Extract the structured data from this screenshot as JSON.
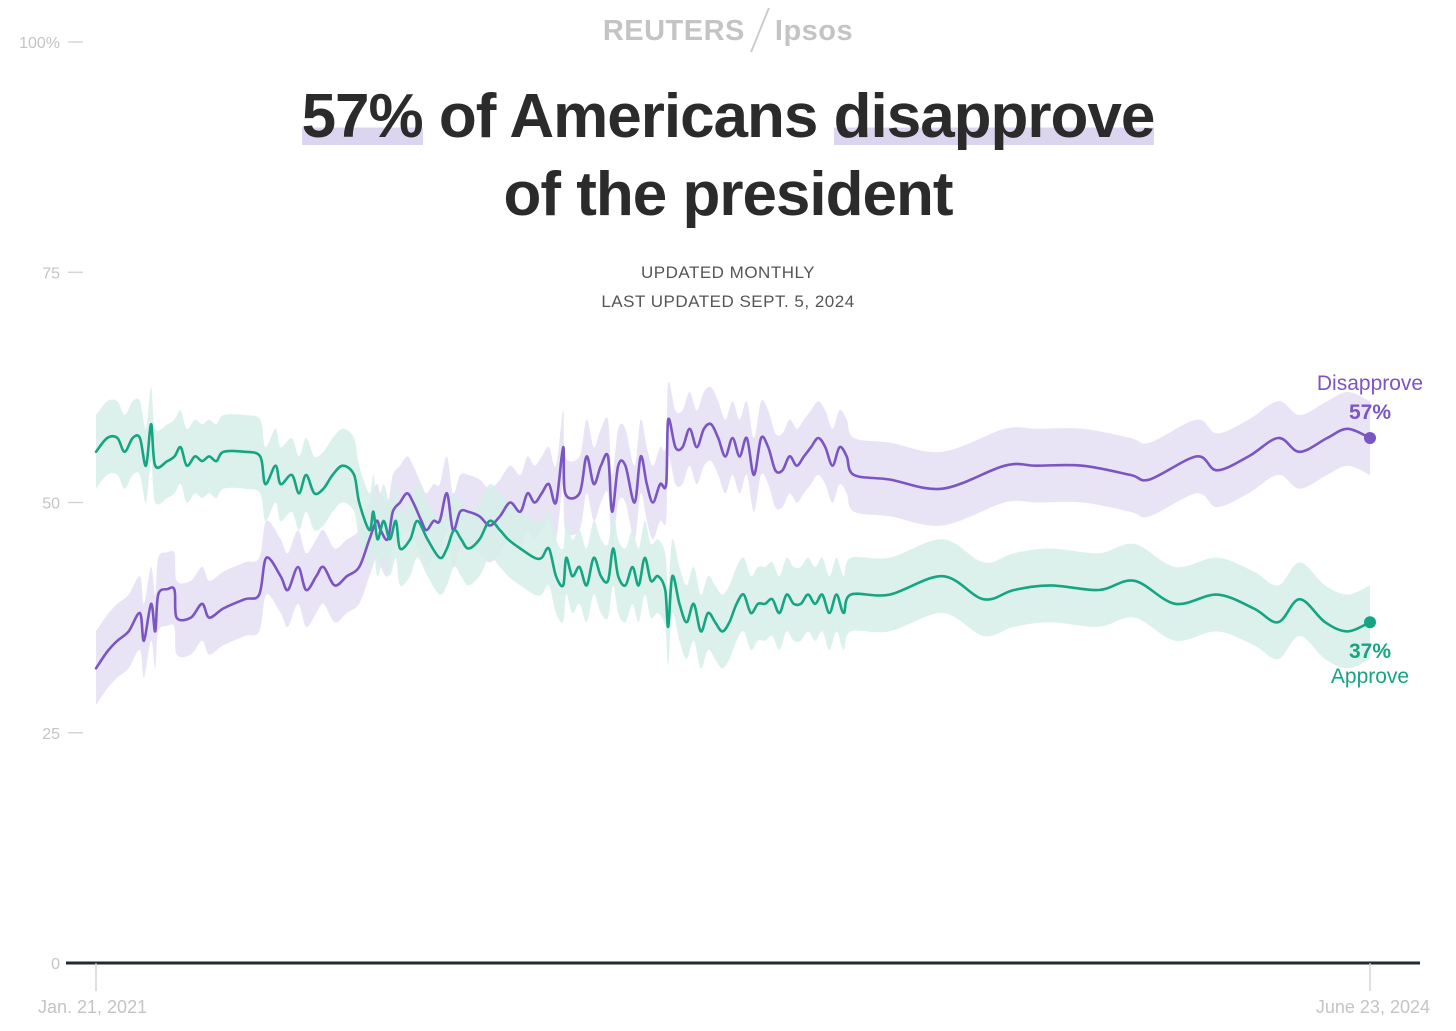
{
  "header": {
    "brand_left": "REUTERS",
    "brand_right": "Ipsos",
    "title_highlight_1": "57%",
    "title_middle": " of Americans ",
    "title_highlight_2": "disapprove",
    "title_line2": "of the president",
    "subtitle_line1": "UPDATED MONTHLY",
    "subtitle_line2": "LAST UPDATED SEPT. 5, 2024"
  },
  "chart_data": {
    "type": "line",
    "title": "57% of Americans disapprove of the president",
    "subtitle": "UPDATED MONTHLY / LAST UPDATED SEPT. 5, 2024",
    "ylim": [
      0,
      100
    ],
    "y_ticks": [
      0,
      25,
      50,
      75,
      100
    ],
    "y_tick_labels": [
      "0",
      "25",
      "50",
      "75",
      "100%"
    ],
    "x_range": [
      "2021-01-21",
      "2024-06-23"
    ],
    "x_tick_labels": [
      "Jan. 21, 2021",
      "June 23, 2024"
    ],
    "grid": false,
    "legend": "direct labels at line ends",
    "colors": {
      "Disapprove": "#7b55c2",
      "Approve": "#16a583",
      "Disapprove_band": "#e4dff5",
      "Approve_band": "#d6efe8",
      "axis": "#222a33",
      "tick": "#c4c4c4"
    },
    "series": [
      {
        "name": "Disapprove",
        "end_label": "57%",
        "data": [
          [
            "2021-01-21",
            32
          ],
          [
            "2021-02-01",
            33.8
          ],
          [
            "2021-02-11",
            35
          ],
          [
            "2021-02-22",
            36
          ],
          [
            "2021-03-05",
            38
          ],
          [
            "2021-03-09",
            35
          ],
          [
            "2021-03-16",
            39
          ],
          [
            "2021-03-20",
            36
          ],
          [
            "2021-03-23",
            40
          ],
          [
            "2021-04-01",
            40.6
          ],
          [
            "2021-04-08",
            40.5
          ],
          [
            "2021-04-10",
            37.5
          ],
          [
            "2021-04-24",
            37.5
          ],
          [
            "2021-05-05",
            39
          ],
          [
            "2021-05-12",
            37.5
          ],
          [
            "2021-05-26",
            38.5
          ],
          [
            "2021-06-16",
            39.5
          ],
          [
            "2021-06-30",
            40
          ],
          [
            "2021-07-07",
            44
          ],
          [
            "2021-07-21",
            42
          ],
          [
            "2021-07-28",
            40.5
          ],
          [
            "2021-08-07",
            43
          ],
          [
            "2021-08-15",
            40.5
          ],
          [
            "2021-08-25",
            42
          ],
          [
            "2021-09-01",
            43
          ],
          [
            "2021-09-12",
            41
          ],
          [
            "2021-09-24",
            42
          ],
          [
            "2021-10-06",
            43
          ],
          [
            "2021-10-16",
            46
          ],
          [
            "2021-10-23",
            48
          ],
          [
            "2021-10-27",
            47
          ],
          [
            "2021-11-03",
            46
          ],
          [
            "2021-11-08",
            49
          ],
          [
            "2021-11-15",
            50
          ],
          [
            "2021-11-22",
            51
          ],
          [
            "2021-11-28",
            50
          ],
          [
            "2021-12-06",
            48
          ],
          [
            "2021-12-11",
            47
          ],
          [
            "2021-12-18",
            48
          ],
          [
            "2021-12-24",
            48
          ],
          [
            "2021-12-31",
            51
          ],
          [
            "2022-01-06",
            47
          ],
          [
            "2022-01-13",
            49
          ],
          [
            "2022-01-21",
            49
          ],
          [
            "2022-02-01",
            48.5
          ],
          [
            "2022-02-11",
            47.5
          ],
          [
            "2022-02-21",
            48.5
          ],
          [
            "2022-03-03",
            50
          ],
          [
            "2022-03-13",
            49
          ],
          [
            "2022-03-20",
            51
          ],
          [
            "2022-03-27",
            50
          ],
          [
            "2022-04-03",
            51
          ],
          [
            "2022-04-10",
            52
          ],
          [
            "2022-04-17",
            50
          ],
          [
            "2022-04-24",
            56
          ],
          [
            "2022-04-26",
            51
          ],
          [
            "2022-05-10",
            51
          ],
          [
            "2022-05-17",
            55
          ],
          [
            "2022-05-24",
            52
          ],
          [
            "2022-05-31",
            54
          ],
          [
            "2022-06-07",
            55
          ],
          [
            "2022-06-11",
            49
          ],
          [
            "2022-06-17",
            54
          ],
          [
            "2022-06-24",
            54
          ],
          [
            "2022-07-03",
            50
          ],
          [
            "2022-07-09",
            55
          ],
          [
            "2022-07-15",
            52
          ],
          [
            "2022-07-21",
            50
          ],
          [
            "2022-07-28",
            52
          ],
          [
            "2022-08-03",
            52
          ],
          [
            "2022-08-05",
            59
          ],
          [
            "2022-08-12",
            56
          ],
          [
            "2022-08-19",
            56
          ],
          [
            "2022-08-26",
            58
          ],
          [
            "2022-09-02",
            56
          ],
          [
            "2022-09-09",
            58
          ],
          [
            "2022-09-16",
            58.5
          ],
          [
            "2022-09-23",
            57
          ],
          [
            "2022-09-30",
            55
          ],
          [
            "2022-10-07",
            57
          ],
          [
            "2022-10-14",
            55
          ],
          [
            "2022-10-21",
            57
          ],
          [
            "2022-10-28",
            53
          ],
          [
            "2022-11-04",
            57
          ],
          [
            "2022-11-11",
            56
          ],
          [
            "2022-11-18",
            53.5
          ],
          [
            "2022-11-25",
            53.5
          ],
          [
            "2022-12-02",
            55
          ],
          [
            "2022-12-09",
            54
          ],
          [
            "2022-12-16",
            55
          ],
          [
            "2022-12-23",
            56
          ],
          [
            "2022-12-30",
            57
          ],
          [
            "2023-01-06",
            56
          ],
          [
            "2023-01-13",
            54
          ],
          [
            "2023-01-20",
            56
          ],
          [
            "2023-01-27",
            55
          ],
          [
            "2023-02-03",
            53
          ],
          [
            "2023-03-10",
            52.5
          ],
          [
            "2023-05-01",
            51.5
          ],
          [
            "2023-07-01",
            54
          ],
          [
            "2023-08-01",
            54
          ],
          [
            "2023-09-15",
            54
          ],
          [
            "2023-11-01",
            53
          ],
          [
            "2023-11-20",
            52.5
          ],
          [
            "2024-01-05",
            55
          ],
          [
            "2024-01-25",
            53.5
          ],
          [
            "2024-02-25",
            55
          ],
          [
            "2024-03-25",
            57
          ],
          [
            "2024-04-15",
            55.5
          ],
          [
            "2024-05-12",
            57
          ],
          [
            "2024-06-01",
            58
          ],
          [
            "2024-06-23",
            57
          ]
        ],
        "band_half_width": 4
      },
      {
        "name": "Approve",
        "end_label": "37%",
        "data": [
          [
            "2021-01-21",
            55.5
          ],
          [
            "2021-02-01",
            57
          ],
          [
            "2021-02-11",
            57
          ],
          [
            "2021-02-18",
            55.5
          ],
          [
            "2021-02-26",
            57
          ],
          [
            "2021-03-05",
            57
          ],
          [
            "2021-03-11",
            54
          ],
          [
            "2021-03-16",
            58.5
          ],
          [
            "2021-03-20",
            54
          ],
          [
            "2021-04-01",
            54.5
          ],
          [
            "2021-04-08",
            55
          ],
          [
            "2021-04-14",
            56
          ],
          [
            "2021-04-20",
            54
          ],
          [
            "2021-04-28",
            55
          ],
          [
            "2021-05-05",
            54.5
          ],
          [
            "2021-05-12",
            55
          ],
          [
            "2021-05-19",
            54.5
          ],
          [
            "2021-05-26",
            55.5
          ],
          [
            "2021-06-16",
            55.5
          ],
          [
            "2021-07-01",
            55
          ],
          [
            "2021-07-06",
            52
          ],
          [
            "2021-07-16",
            54
          ],
          [
            "2021-07-21",
            52
          ],
          [
            "2021-08-01",
            53
          ],
          [
            "2021-08-08",
            51
          ],
          [
            "2021-08-15",
            53
          ],
          [
            "2021-08-23",
            51
          ],
          [
            "2021-09-01",
            51.5
          ],
          [
            "2021-09-10",
            53
          ],
          [
            "2021-09-20",
            54
          ],
          [
            "2021-10-01",
            53
          ],
          [
            "2021-10-06",
            50
          ],
          [
            "2021-10-16",
            47
          ],
          [
            "2021-10-20",
            49
          ],
          [
            "2021-10-24",
            46
          ],
          [
            "2021-10-30",
            48
          ],
          [
            "2021-11-05",
            46
          ],
          [
            "2021-11-11",
            48
          ],
          [
            "2021-11-15",
            45
          ],
          [
            "2021-11-25",
            46
          ],
          [
            "2021-12-02",
            48
          ],
          [
            "2021-12-12",
            46
          ],
          [
            "2021-12-24",
            44
          ],
          [
            "2021-12-31",
            45
          ],
          [
            "2022-01-07",
            47
          ],
          [
            "2022-01-14",
            46
          ],
          [
            "2022-01-21",
            45
          ],
          [
            "2022-02-01",
            46
          ],
          [
            "2022-02-11",
            48
          ],
          [
            "2022-02-21",
            47
          ],
          [
            "2022-03-01",
            46
          ],
          [
            "2022-03-13",
            45
          ],
          [
            "2022-03-27",
            44
          ],
          [
            "2022-04-03",
            44
          ],
          [
            "2022-04-10",
            45
          ],
          [
            "2022-04-17",
            42
          ],
          [
            "2022-04-24",
            41
          ],
          [
            "2022-04-27",
            44
          ],
          [
            "2022-05-03",
            42
          ],
          [
            "2022-05-10",
            43
          ],
          [
            "2022-05-17",
            41
          ],
          [
            "2022-05-24",
            44
          ],
          [
            "2022-05-31",
            42
          ],
          [
            "2022-06-07",
            41.5
          ],
          [
            "2022-06-12",
            45
          ],
          [
            "2022-06-17",
            42
          ],
          [
            "2022-06-24",
            41
          ],
          [
            "2022-07-01",
            43
          ],
          [
            "2022-07-07",
            41
          ],
          [
            "2022-07-13",
            44
          ],
          [
            "2022-07-19",
            41.5
          ],
          [
            "2022-07-26",
            42
          ],
          [
            "2022-08-02",
            40.5
          ],
          [
            "2022-08-05",
            36.5
          ],
          [
            "2022-08-09",
            42
          ],
          [
            "2022-08-16",
            39
          ],
          [
            "2022-08-23",
            37
          ],
          [
            "2022-08-30",
            39
          ],
          [
            "2022-09-06",
            36
          ],
          [
            "2022-09-13",
            38
          ],
          [
            "2022-09-20",
            37
          ],
          [
            "2022-09-27",
            36
          ],
          [
            "2022-10-04",
            37
          ],
          [
            "2022-10-11",
            39
          ],
          [
            "2022-10-18",
            40
          ],
          [
            "2022-10-25",
            38
          ],
          [
            "2022-11-01",
            39
          ],
          [
            "2022-11-08",
            39
          ],
          [
            "2022-11-15",
            39.5
          ],
          [
            "2022-11-22",
            38
          ],
          [
            "2022-11-29",
            40
          ],
          [
            "2022-12-06",
            39
          ],
          [
            "2022-12-13",
            39
          ],
          [
            "2022-12-20",
            40
          ],
          [
            "2022-12-27",
            39
          ],
          [
            "2023-01-03",
            40
          ],
          [
            "2023-01-10",
            38
          ],
          [
            "2023-01-17",
            40
          ],
          [
            "2023-01-24",
            38
          ],
          [
            "2023-01-31",
            40
          ],
          [
            "2023-03-10",
            40
          ],
          [
            "2023-05-01",
            42
          ],
          [
            "2023-06-10",
            39.5
          ],
          [
            "2023-07-10",
            40.5
          ],
          [
            "2023-08-15",
            41
          ],
          [
            "2023-10-01",
            40.5
          ],
          [
            "2023-11-05",
            41.5
          ],
          [
            "2023-12-15",
            39
          ],
          [
            "2024-01-25",
            40
          ],
          [
            "2024-03-01",
            38.5
          ],
          [
            "2024-03-25",
            37
          ],
          [
            "2024-04-15",
            39.5
          ],
          [
            "2024-05-10",
            37
          ],
          [
            "2024-06-01",
            36
          ],
          [
            "2024-06-23",
            37
          ]
        ],
        "band_half_width": 4
      }
    ]
  }
}
